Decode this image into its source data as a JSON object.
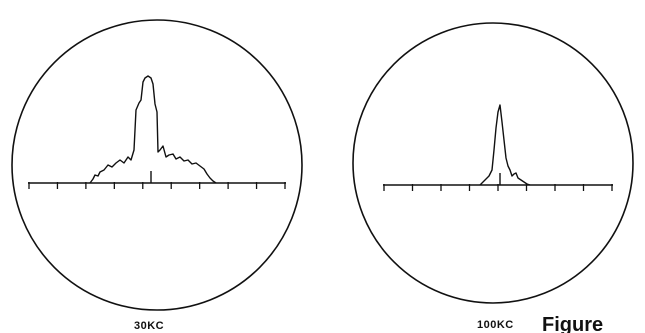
{
  "figure": {
    "caption": "Figure",
    "colors": {
      "ink": "#111111",
      "background": "#ffffff"
    },
    "panels": [
      {
        "label": "30KC",
        "shape": "broad"
      },
      {
        "label": "100KC",
        "shape": "narrow"
      }
    ]
  }
}
